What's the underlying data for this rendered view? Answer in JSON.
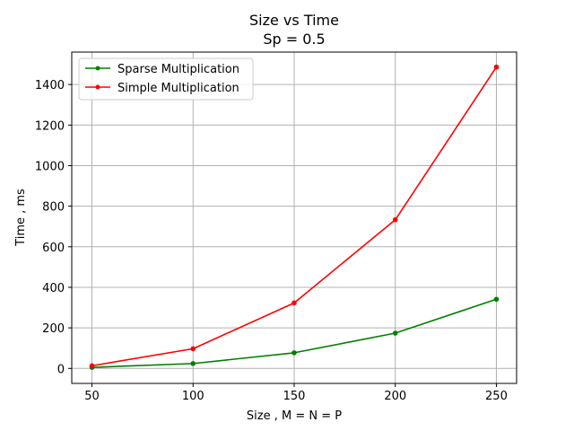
{
  "chart_data": {
    "type": "line",
    "title": "Size vs Time",
    "subtitle": "Sp = 0.5",
    "xlabel": "Size , M = N = P",
    "ylabel": "Time , ms",
    "x": [
      50,
      100,
      150,
      200,
      250
    ],
    "xticks": [
      50,
      100,
      150,
      200,
      250
    ],
    "yticks": [
      0,
      200,
      400,
      600,
      800,
      1000,
      1200,
      1400
    ],
    "xlim": [
      40,
      260
    ],
    "ylim": [
      -74,
      1560
    ],
    "grid": true,
    "legend_position": "top-left",
    "series": [
      {
        "name": "Sparse Multiplication",
        "color": "#008000",
        "values": [
          5,
          24,
          77,
          174,
          341
        ]
      },
      {
        "name": "Simple Multiplication",
        "color": "#ff0000",
        "values": [
          13,
          97,
          323,
          733,
          1486
        ]
      }
    ]
  }
}
